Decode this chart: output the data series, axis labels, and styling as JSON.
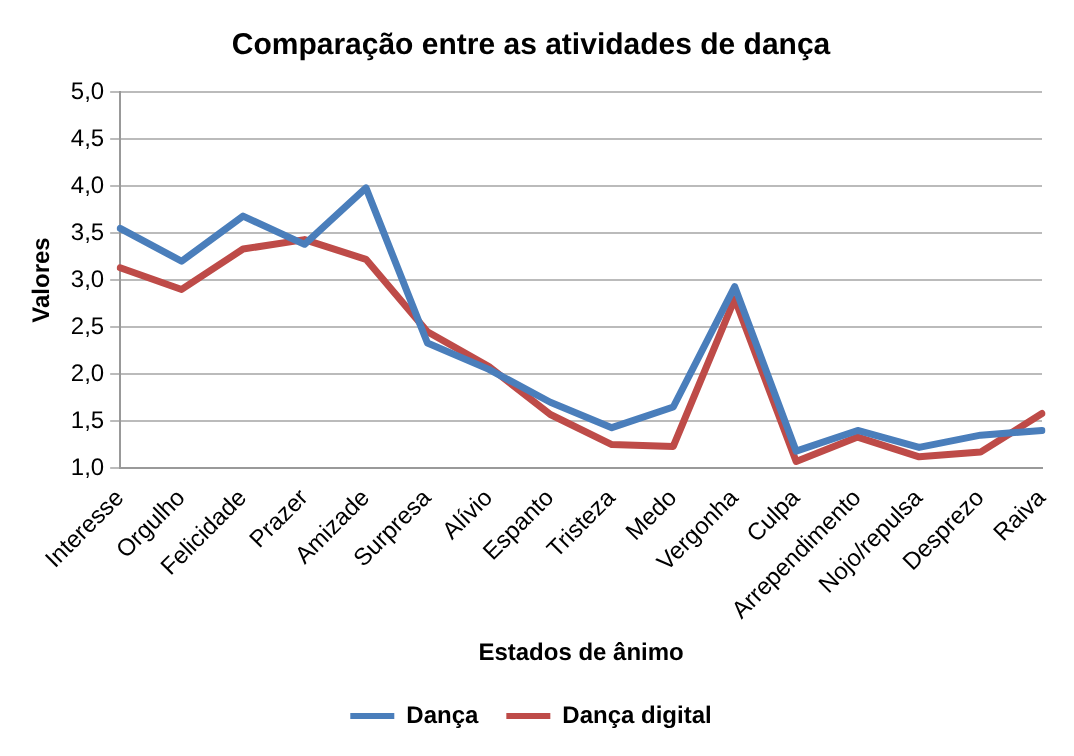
{
  "chart_data": {
    "type": "line",
    "title": "Comparação entre as atividades de dança",
    "xlabel": "Estados de ânimo",
    "ylabel": "Valores",
    "categories": [
      "Interesse",
      "Orgulho",
      "Felicidade",
      "Prazer",
      "Amizade",
      "Surpresa",
      "Alívio",
      "Espanto",
      "Tristeza",
      "Medo",
      "Vergonha",
      "Culpa",
      "Arrependimento",
      "Nojo/repulsa",
      "Desprezo",
      "Raiva"
    ],
    "series": [
      {
        "name": "Dança",
        "color": "#4a7ebb",
        "values": [
          3.55,
          3.2,
          3.68,
          3.38,
          3.98,
          2.33,
          2.05,
          1.7,
          1.43,
          1.65,
          2.93,
          1.18,
          1.4,
          1.22,
          1.35,
          1.4
        ]
      },
      {
        "name": "Dança digital",
        "color": "#be4b48",
        "values": [
          3.13,
          2.9,
          3.33,
          3.43,
          3.22,
          2.45,
          2.08,
          1.57,
          1.25,
          1.23,
          2.8,
          1.07,
          1.33,
          1.12,
          1.17,
          1.58
        ]
      }
    ],
    "ylim": [
      1,
      5
    ],
    "yticks": [
      {
        "value": 1,
        "label": "1,0"
      },
      {
        "value": 1.5,
        "label": "1,5"
      },
      {
        "value": 2,
        "label": "2,0"
      },
      {
        "value": 2.5,
        "label": "2,5"
      },
      {
        "value": 3,
        "label": "3,0"
      },
      {
        "value": 3.5,
        "label": "3,5"
      },
      {
        "value": 4,
        "label": "4,0"
      },
      {
        "value": 4.5,
        "label": "4,5"
      },
      {
        "value": 5,
        "label": "5,0"
      }
    ],
    "grid": "y",
    "legend": "bottom",
    "marker": "none",
    "line_style": "solid"
  }
}
